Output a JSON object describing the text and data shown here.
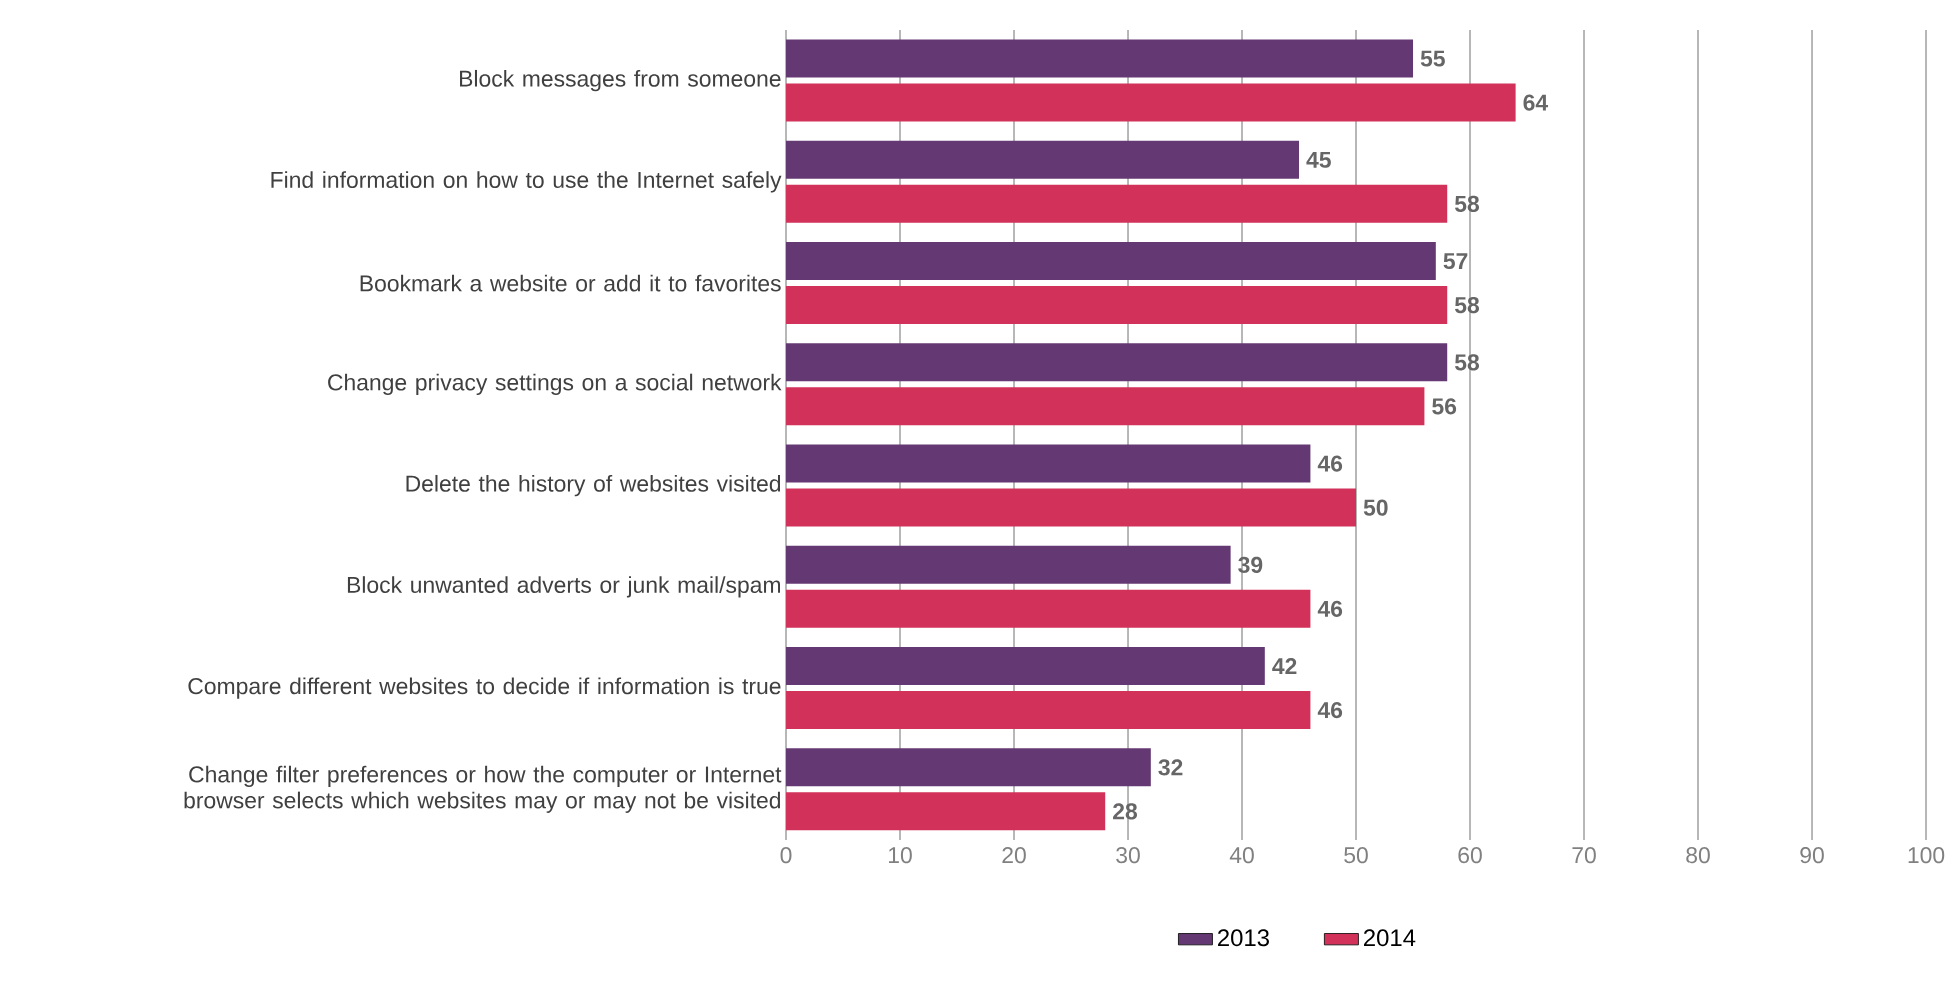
{
  "chart_data": {
    "type": "bar",
    "orientation": "horizontal",
    "categories": [
      "Block messages from someone",
      "Find information on how to use the Internet safely",
      "Bookmark a website or add it to favorites",
      "Change privacy settings on a social network",
      "Delete the history of websites visited",
      "Block unwanted adverts or junk mail/spam",
      "Compare different websites to decide if information is true",
      "Change filter preferences or how the computer or Internet browser selects which websites may or may not be visited"
    ],
    "series": [
      {
        "name": "2013",
        "color": "#643873",
        "values": [
          55,
          45,
          57,
          58,
          46,
          39,
          42,
          32
        ]
      },
      {
        "name": "2014",
        "color": "#d2325a",
        "values": [
          64,
          58,
          58,
          56,
          50,
          46,
          46,
          28
        ]
      }
    ],
    "xlim": [
      0,
      100
    ],
    "xticks": [
      0,
      10,
      20,
      30,
      40,
      50,
      60,
      70,
      80,
      90,
      100
    ],
    "grid": "x",
    "legend": "bottom",
    "data_labels": true
  }
}
